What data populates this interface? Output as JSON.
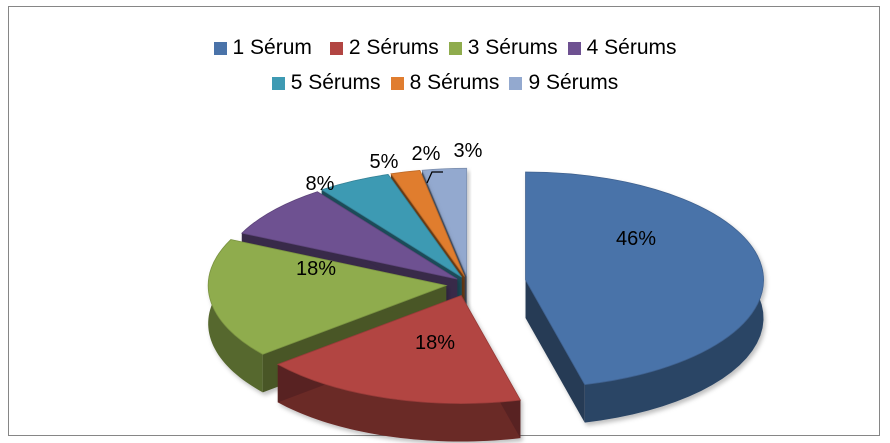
{
  "chart_data": {
    "type": "pie",
    "style": "3d-exploded",
    "title": "",
    "legend_position": "top",
    "categories": [
      "1 Sérum",
      "2 Sérums",
      "3 Sérums",
      "4 Sérums",
      "5 Sérums",
      "8 Sérums",
      "9 Sérums"
    ],
    "values": [
      46,
      18,
      18,
      8,
      5,
      2,
      3
    ],
    "labels": [
      "46%",
      "18%",
      "18%",
      "8%",
      "5%",
      "2%",
      "3%"
    ],
    "colors": [
      "#4A73A9",
      "#B24542",
      "#8FAC4D",
      "#6E5191",
      "#3E9AB3",
      "#E07D2F",
      "#93A9CF"
    ]
  }
}
